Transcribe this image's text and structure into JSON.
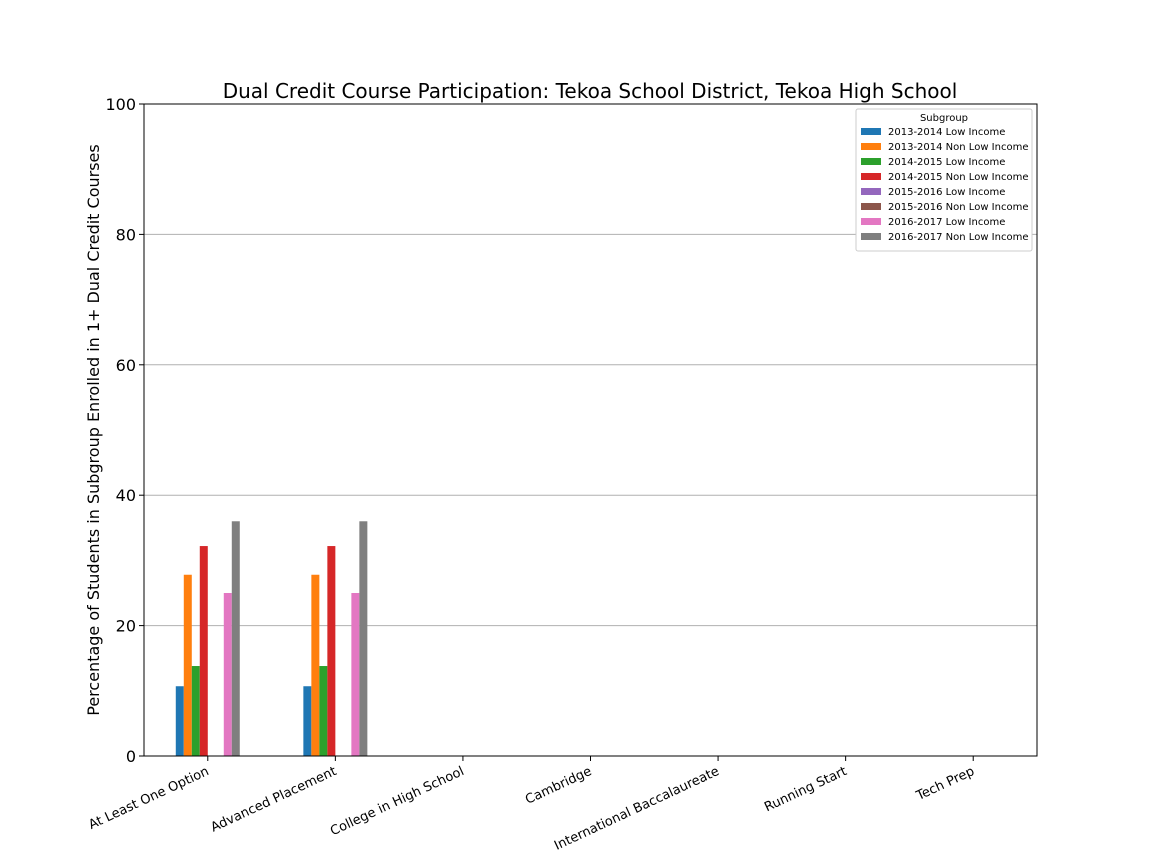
{
  "chart_data": {
    "type": "bar",
    "title": "Dual Credit Course Participation: Tekoa School District, Tekoa High School",
    "xlabel": "",
    "ylabel": "Percentage of Students in Subgroup Enrolled in 1+ Dual Credit Courses",
    "ylim": [
      0,
      100
    ],
    "yticks": [
      0,
      20,
      40,
      60,
      80,
      100
    ],
    "grid": "horizontal",
    "legend": {
      "title": "Subgroup",
      "placement": "top-right"
    },
    "categories": [
      "At Least One Option",
      "Advanced Placement",
      "College in High School",
      "Cambridge",
      "International Baccalaureate",
      "Running Start",
      "Tech Prep"
    ],
    "series": [
      {
        "name": "2013-2014 Low Income",
        "color": "#1f77b4",
        "values": [
          10.7,
          10.7,
          0,
          0,
          0,
          0,
          0
        ]
      },
      {
        "name": "2013-2014 Non Low Income",
        "color": "#ff7f0e",
        "values": [
          27.8,
          27.8,
          0,
          0,
          0,
          0,
          0
        ]
      },
      {
        "name": "2014-2015 Low Income",
        "color": "#2ca02c",
        "values": [
          13.8,
          13.8,
          0,
          0,
          0,
          0,
          0
        ]
      },
      {
        "name": "2014-2015 Non Low Income",
        "color": "#d62728",
        "values": [
          32.2,
          32.2,
          0,
          0,
          0,
          0,
          0
        ]
      },
      {
        "name": "2015-2016 Low Income",
        "color": "#9467bd",
        "values": [
          0,
          0,
          0,
          0,
          0,
          0,
          0
        ]
      },
      {
        "name": "2015-2016 Non Low Income",
        "color": "#8c564b",
        "values": [
          0,
          0,
          0,
          0,
          0,
          0,
          0
        ]
      },
      {
        "name": "2016-2017 Low Income",
        "color": "#e377c2",
        "values": [
          25.0,
          25.0,
          0,
          0,
          0,
          0,
          0
        ]
      },
      {
        "name": "2016-2017 Non Low Income",
        "color": "#7f7f7f",
        "values": [
          36.0,
          36.0,
          0,
          0,
          0,
          0,
          0
        ]
      }
    ]
  }
}
